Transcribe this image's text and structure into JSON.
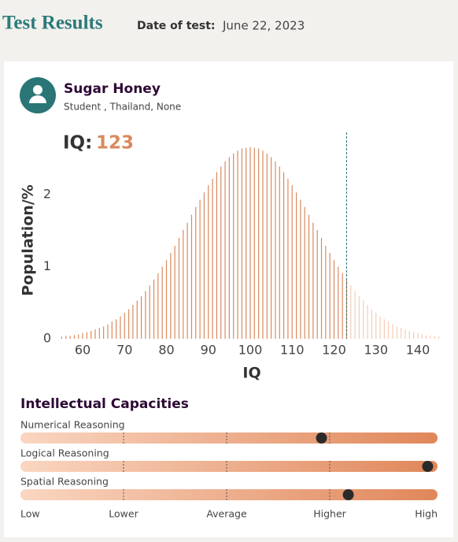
{
  "header": {
    "title": "Test Results",
    "date_label": "Date of test:",
    "date": "June 22, 2023"
  },
  "profile": {
    "name": "Sugar Honey",
    "details": "Student , Thailand, None"
  },
  "score": {
    "label": "IQ:",
    "value": 123
  },
  "chart_data": {
    "type": "bar",
    "xlabel": "IQ",
    "ylabel": "Population/%",
    "x": [
      55,
      56,
      57,
      58,
      59,
      60,
      61,
      62,
      63,
      64,
      65,
      66,
      67,
      68,
      69,
      70,
      71,
      72,
      73,
      74,
      75,
      76,
      77,
      78,
      79,
      80,
      81,
      82,
      83,
      84,
      85,
      86,
      87,
      88,
      89,
      90,
      91,
      92,
      93,
      94,
      95,
      96,
      97,
      98,
      99,
      100,
      101,
      102,
      103,
      104,
      105,
      106,
      107,
      108,
      109,
      110,
      111,
      112,
      113,
      114,
      115,
      116,
      117,
      118,
      119,
      120,
      121,
      122,
      123,
      124,
      125,
      126,
      127,
      128,
      129,
      130,
      131,
      132,
      133,
      134,
      135,
      136,
      137,
      138,
      139,
      140,
      141,
      142,
      143,
      144,
      145
    ],
    "values": [
      0.03,
      0.04,
      0.04,
      0.05,
      0.06,
      0.08,
      0.09,
      0.11,
      0.13,
      0.15,
      0.17,
      0.2,
      0.24,
      0.27,
      0.31,
      0.36,
      0.41,
      0.47,
      0.53,
      0.59,
      0.66,
      0.74,
      0.82,
      0.91,
      1.0,
      1.09,
      1.19,
      1.29,
      1.4,
      1.51,
      1.61,
      1.72,
      1.83,
      1.93,
      2.03,
      2.13,
      2.22,
      2.31,
      2.39,
      2.46,
      2.52,
      2.57,
      2.61,
      2.64,
      2.65,
      2.66,
      2.65,
      2.64,
      2.61,
      2.57,
      2.52,
      2.46,
      2.39,
      2.31,
      2.22,
      2.13,
      2.03,
      1.93,
      1.83,
      1.72,
      1.61,
      1.51,
      1.4,
      1.29,
      1.19,
      1.09,
      1.0,
      0.91,
      0.82,
      0.74,
      0.66,
      0.59,
      0.53,
      0.47,
      0.41,
      0.36,
      0.31,
      0.27,
      0.24,
      0.2,
      0.17,
      0.15,
      0.13,
      0.11,
      0.09,
      0.08,
      0.06,
      0.05,
      0.04,
      0.04,
      0.03
    ],
    "color": "#d98a5f",
    "faded_color": "#f2cdb6",
    "marker_color": "#2b6f78",
    "xlim": [
      55,
      145
    ],
    "ylim": [
      0,
      2.7
    ],
    "xticks": [
      60,
      70,
      80,
      90,
      100,
      110,
      120,
      130,
      140
    ],
    "yticks": [
      0,
      1,
      2
    ]
  },
  "capacities": {
    "title": "Intellectual Capacities",
    "xlim": [
      0,
      4
    ],
    "scale": [
      {
        "value": 0,
        "label": "Low"
      },
      {
        "value": 1,
        "label": "Lower"
      },
      {
        "value": 2,
        "label": "Average"
      },
      {
        "value": 3,
        "label": "Higher"
      },
      {
        "value": 4,
        "label": "High"
      }
    ],
    "items": [
      {
        "name": "Numerical Reasoning",
        "value": 2.92
      },
      {
        "name": "Logical Reasoning",
        "value": 3.95
      },
      {
        "name": "Spatial Reasoning",
        "value": 3.18
      }
    ]
  }
}
